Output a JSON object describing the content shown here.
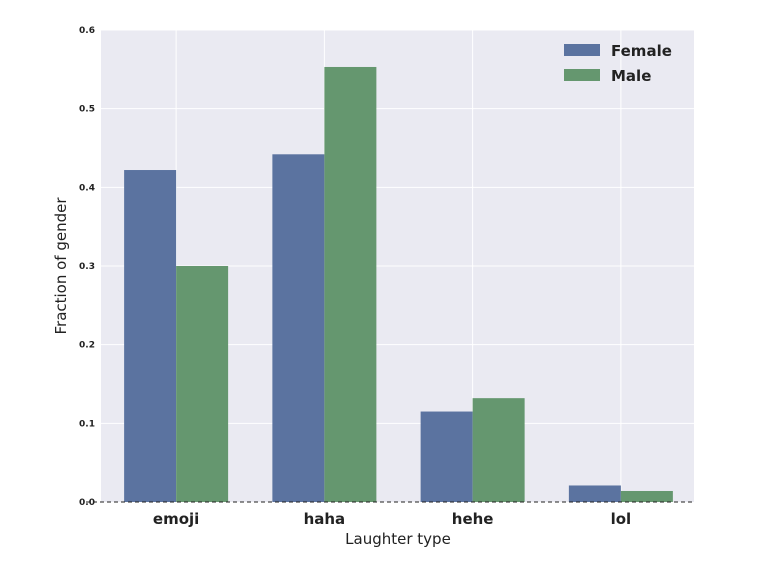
{
  "chart_data": {
    "type": "bar",
    "xlabel": "Laughter type",
    "ylabel": "Fraction of gender",
    "categories": [
      "emoji",
      "haha",
      "hehe",
      "lol"
    ],
    "series": [
      {
        "name": "Female",
        "color": "#5B73A0",
        "values": [
          0.422,
          0.442,
          0.115,
          0.021
        ]
      },
      {
        "name": "Male",
        "color": "#65976F",
        "values": [
          0.3,
          0.553,
          0.132,
          0.014
        ]
      }
    ],
    "ylim": [
      0,
      0.6
    ],
    "yticks": [
      "0.0",
      "0.1",
      "0.2",
      "0.3",
      "0.4",
      "0.5",
      "0.6"
    ],
    "grid": true,
    "legend_position": "top-right",
    "baseline": "dashed"
  }
}
